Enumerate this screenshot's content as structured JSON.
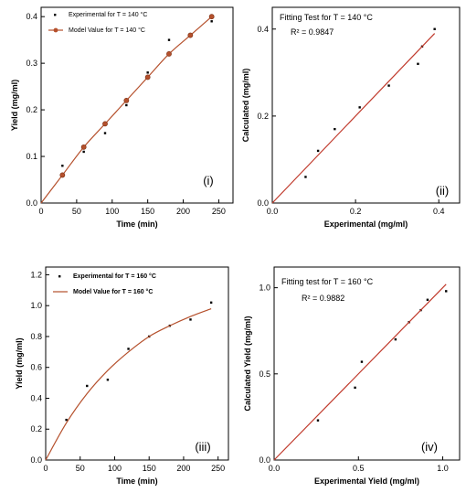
{
  "chart_data": [
    {
      "id": "i",
      "type": "scatter+line",
      "panel_label": "(i)",
      "xlabel": "Time (min)",
      "ylabel": "Yield (mg/ml)",
      "xlim": [
        0,
        270
      ],
      "ylim": [
        0,
        0.42
      ],
      "x_ticks": [
        0,
        50,
        100,
        150,
        200,
        250
      ],
      "y_ticks": [
        0.0,
        0.1,
        0.2,
        0.3,
        0.4
      ],
      "legend": {
        "placement": "top-left"
      },
      "series": [
        {
          "name": "Experimental for T = 140 °C",
          "kind": "scatter",
          "color": "#000000",
          "x": [
            30,
            60,
            90,
            120,
            150,
            180,
            210,
            240
          ],
          "y": [
            0.08,
            0.11,
            0.15,
            0.21,
            0.28,
            0.35,
            0.36,
            0.39
          ]
        },
        {
          "name": "Model Value for T = 140 °C",
          "kind": "line+marker",
          "color": "#b5502c",
          "x": [
            0,
            30,
            60,
            90,
            120,
            150,
            180,
            210,
            240
          ],
          "y": [
            0.0,
            0.06,
            0.12,
            0.17,
            0.22,
            0.27,
            0.32,
            0.36,
            0.4
          ]
        }
      ]
    },
    {
      "id": "ii",
      "type": "scatter+line",
      "panel_label": "(ii)",
      "title": "Fitting Test for T = 140 °C",
      "annotation": "R² = 0.9847",
      "xlabel": "Experimental (mg/ml)",
      "ylabel": "Calculated (mg/ml)",
      "xlim": [
        0,
        0.45
      ],
      "ylim": [
        0,
        0.45
      ],
      "x_ticks": [
        0.0,
        0.2,
        0.4
      ],
      "y_ticks": [
        0.0,
        0.2,
        0.4
      ],
      "series": [
        {
          "kind": "scatter",
          "color": "#000000",
          "x": [
            0.08,
            0.11,
            0.15,
            0.21,
            0.28,
            0.35,
            0.36,
            0.39
          ],
          "y": [
            0.06,
            0.12,
            0.17,
            0.22,
            0.27,
            0.32,
            0.36,
            0.4
          ]
        },
        {
          "kind": "line",
          "color": "#c0392b",
          "x": [
            0.0,
            0.39
          ],
          "y": [
            0.0,
            0.39
          ]
        }
      ]
    },
    {
      "id": "iii",
      "type": "scatter+line",
      "panel_label": "(iii)",
      "xlabel": "Time (min)",
      "ylabel": "Yield (mg/ml)",
      "xlim": [
        0,
        265
      ],
      "ylim": [
        0,
        1.25
      ],
      "x_ticks": [
        0,
        50,
        100,
        150,
        200,
        250
      ],
      "y_ticks": [
        0.0,
        0.2,
        0.4,
        0.6,
        0.8,
        1.0,
        1.2
      ],
      "legend": {
        "placement": "top-left"
      },
      "series": [
        {
          "name": "Experimental for T = 160 °C",
          "kind": "scatter",
          "color": "#000000",
          "x": [
            30,
            60,
            90,
            120,
            150,
            180,
            210,
            240
          ],
          "y": [
            0.26,
            0.48,
            0.52,
            0.72,
            0.8,
            0.87,
            0.91,
            1.02
          ]
        },
        {
          "name": "Model Value for T = 160 °C",
          "kind": "line",
          "color": "#b5502c",
          "x": [
            0,
            30,
            60,
            90,
            120,
            150,
            180,
            210,
            240
          ],
          "y": [
            0.0,
            0.24,
            0.43,
            0.58,
            0.7,
            0.8,
            0.87,
            0.93,
            0.98
          ]
        }
      ]
    },
    {
      "id": "iv",
      "type": "scatter+line",
      "panel_label": "(iv)",
      "title": "Fitting test for T = 160 °C",
      "annotation": "R² = 0.9882",
      "xlabel": "Experimental Yield (mg/ml)",
      "ylabel": "Calculated Yield (mg/ml)",
      "xlim": [
        0,
        1.1
      ],
      "ylim": [
        0,
        1.12
      ],
      "x_ticks": [
        0.0,
        0.5,
        1.0
      ],
      "y_ticks": [
        0.0,
        0.5,
        1.0
      ],
      "series": [
        {
          "kind": "scatter",
          "color": "#000000",
          "x": [
            0.26,
            0.48,
            0.52,
            0.72,
            0.8,
            0.87,
            0.91,
            1.02
          ],
          "y": [
            0.23,
            0.42,
            0.57,
            0.7,
            0.8,
            0.87,
            0.93,
            0.98
          ]
        },
        {
          "kind": "line",
          "color": "#c0392b",
          "x": [
            0.0,
            1.02
          ],
          "y": [
            0.0,
            1.02
          ]
        }
      ]
    }
  ]
}
